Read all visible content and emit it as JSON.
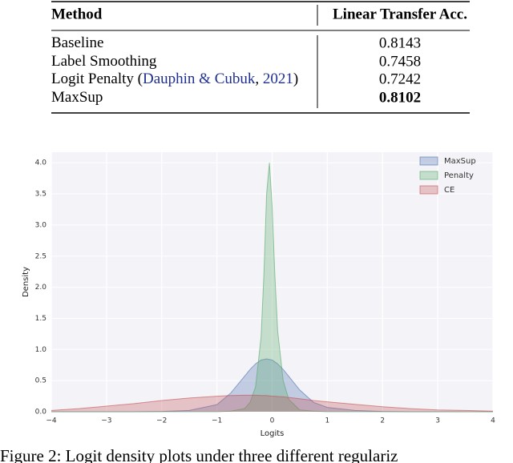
{
  "table": {
    "header": [
      "Method",
      "Linear Transfer Acc."
    ],
    "rows": [
      {
        "method": [
          {
            "text": "Baseline"
          }
        ],
        "acc": 0.8143
      },
      {
        "method": [
          {
            "text": "Label Smoothing"
          }
        ],
        "acc": 0.7458
      },
      {
        "method": [
          {
            "text": "Logit Penalty ("
          },
          {
            "text": "Dauphin & Cubuk",
            "link": true
          },
          {
            "text": ", "
          },
          {
            "text": "2021",
            "link": true
          },
          {
            "text": ")"
          }
        ],
        "acc": 0.7242
      },
      {
        "method": [
          {
            "text": "MaxSup"
          }
        ],
        "acc": 0.8102,
        "bold": true
      }
    ]
  },
  "chart_data": {
    "type": "area",
    "xlabel": "Logits",
    "ylabel": "Density",
    "x": [
      -4,
      -3.5,
      -3,
      -2.5,
      -2,
      -1.5,
      -1,
      -0.75,
      -0.5,
      -0.4,
      -0.3,
      -0.2,
      -0.15,
      -0.1,
      -0.05,
      0,
      0.05,
      0.1,
      0.2,
      0.3,
      0.5,
      0.75,
      1,
      1.5,
      2,
      2.5,
      3,
      3.5,
      4
    ],
    "series": [
      {
        "name": "MaxSup",
        "color": "#4c72b0",
        "values": [
          0,
          0,
          0,
          0,
          0.005,
          0.02,
          0.115,
          0.3,
          0.57,
          0.68,
          0.77,
          0.83,
          0.84,
          0.85,
          0.84,
          0.83,
          0.8,
          0.77,
          0.68,
          0.57,
          0.35,
          0.15,
          0.07,
          0.02,
          0.005,
          0,
          0,
          0,
          0
        ]
      },
      {
        "name": "Penalty",
        "color": "#55a868",
        "values": [
          0,
          0,
          0,
          0,
          0,
          0,
          0,
          0.01,
          0.05,
          0.15,
          0.4,
          1.2,
          2.2,
          3.5,
          4.0,
          3.3,
          2.2,
          1.3,
          0.5,
          0.2,
          0.03,
          0.01,
          0,
          0,
          0,
          0,
          0,
          0,
          0
        ]
      },
      {
        "name": "CE",
        "color": "#c44e52",
        "values": [
          0.02,
          0.05,
          0.09,
          0.13,
          0.18,
          0.22,
          0.25,
          0.26,
          0.265,
          0.265,
          0.265,
          0.26,
          0.26,
          0.26,
          0.255,
          0.25,
          0.25,
          0.245,
          0.24,
          0.23,
          0.21,
          0.18,
          0.16,
          0.12,
          0.08,
          0.05,
          0.03,
          0.02,
          0.01
        ]
      }
    ],
    "xlim": [
      -4,
      4
    ],
    "ylim": [
      0,
      4.17
    ],
    "xticks": [
      {
        "value": -4,
        "label": "−4"
      },
      {
        "value": -3,
        "label": "−3"
      },
      {
        "value": -2,
        "label": "−2"
      },
      {
        "value": -1,
        "label": "−1"
      },
      0,
      1,
      2,
      3,
      4
    ],
    "yticks": [
      {
        "value": 0,
        "label": "0.0"
      },
      {
        "value": 0.5,
        "label": "0.5"
      },
      {
        "value": 1,
        "label": "1.0"
      },
      {
        "value": 1.5,
        "label": "1.5"
      },
      {
        "value": 2,
        "label": "2.0"
      },
      {
        "value": 2.5,
        "label": "2.5"
      },
      {
        "value": 3,
        "label": "3.0"
      },
      {
        "value": 3.5,
        "label": "3.5"
      },
      {
        "value": 4,
        "label": "4.0"
      }
    ],
    "grid": true,
    "legend": "upper right"
  },
  "caption": "Figure 2: Logit density plots under three different regulariz"
}
